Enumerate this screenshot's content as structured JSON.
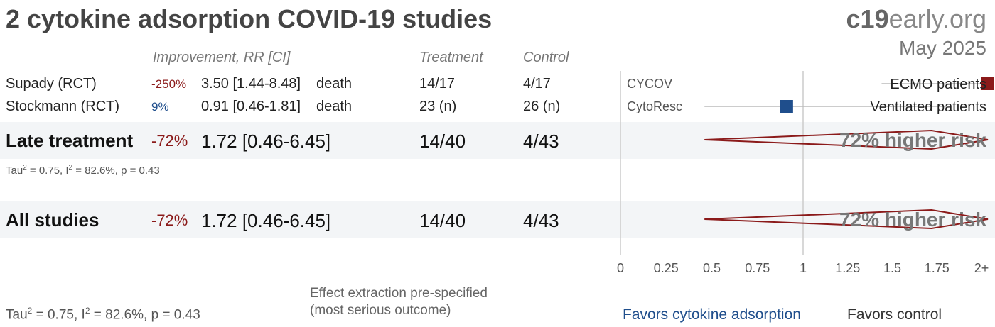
{
  "header": {
    "title": "2 cytokine adsorption COVID-19 studies",
    "brand_bold": "c19",
    "brand_rest": "early.org",
    "date": "May 2025"
  },
  "columns": {
    "improvement": "Improvement, RR [CI]",
    "treatment": "Treatment",
    "control": "Control"
  },
  "chart_data": {
    "type": "forest",
    "x_ticks": [
      "0",
      "0.25",
      "0.5",
      "0.75",
      "1",
      "1.25",
      "1.5",
      "1.75",
      "2+"
    ],
    "xlim": [
      0,
      2
    ],
    "studies": [
      {
        "name": "Supady (RCT)",
        "improvement": "-250%",
        "effect_text": "3.50 [1.44-8.48]",
        "rr": 3.5,
        "ci_low": 1.44,
        "ci_high": 8.48,
        "outcome": "death",
        "treatment": "14/17",
        "control": "4/17",
        "trial_name": "CYCOV",
        "population": "ECMO patients",
        "favors": "control"
      },
      {
        "name": "Stockmann (RCT)",
        "improvement": "9%",
        "effect_text": "0.91 [0.46-1.81]",
        "rr": 0.91,
        "ci_low": 0.46,
        "ci_high": 1.81,
        "outcome": "death",
        "treatment": "23 (n)",
        "control": "26 (n)",
        "trial_name": "CytoResc",
        "population": "Ventilated patients",
        "favors": "treatment"
      }
    ],
    "summaries": [
      {
        "name": "Late treatment",
        "improvement": "-72%",
        "effect_text": "1.72 [0.46-6.45]",
        "rr": 1.72,
        "ci_low": 0.46,
        "ci_high": 6.45,
        "treatment": "14/40",
        "control": "4/43",
        "label": "72% higher risk",
        "stats": {
          "tau": "Tau",
          "tau_rest": " = 0.75, I",
          "i_rest": " = 82.6%, p = 0.43"
        }
      },
      {
        "name": "All studies",
        "improvement": "-72%",
        "effect_text": "1.72 [0.46-6.45]",
        "rr": 1.72,
        "ci_low": 0.46,
        "ci_high": 6.45,
        "treatment": "14/40",
        "control": "4/43",
        "label": "72% higher risk"
      }
    ],
    "colors": {
      "treatment": "#1f4e8c",
      "control": "#8b1a1a",
      "grid": "#cccccc"
    }
  },
  "footer": {
    "stats_tau": "Tau",
    "stats_mid": " = 0.75, I",
    "stats_end": " = 82.6%, p = 0.43",
    "note_line1": "Effect extraction pre-specified",
    "note_line2": "(most serious outcome)",
    "favors_left": "Favors cytokine adsorption",
    "favors_right": "Favors control"
  }
}
